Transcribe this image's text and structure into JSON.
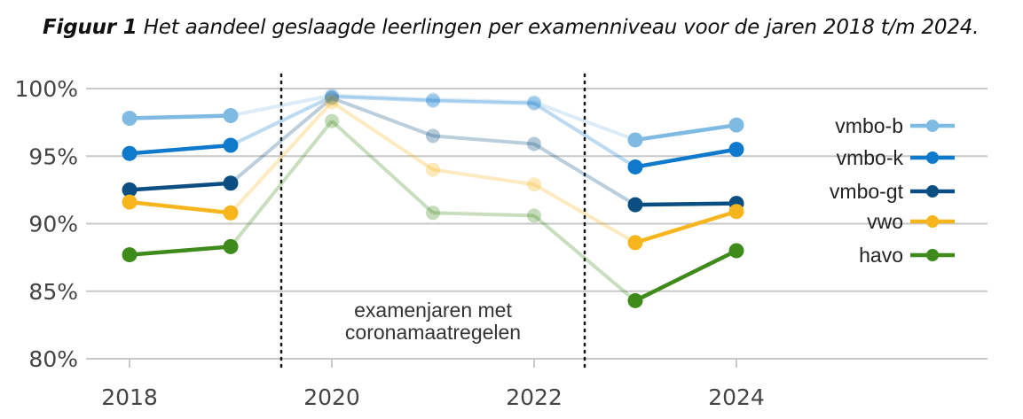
{
  "caption": {
    "label": "Figuur 1",
    "text": "Het aandeel geslaagde leerlingen per examenniveau voor de jaren 2018 t/m 2024."
  },
  "chart_data": {
    "type": "line",
    "x": [
      2018,
      2019,
      2020,
      2021,
      2022,
      2023,
      2024
    ],
    "xticks": [
      "2018",
      "2020",
      "2022",
      "2024"
    ],
    "yticks": [
      "80%",
      "85%",
      "90%",
      "95%",
      "100%"
    ],
    "ylim": [
      80,
      100
    ],
    "grid": "horizontal",
    "legend_position": "right",
    "highlighted_years": [
      2018,
      2019,
      2023,
      2024
    ],
    "faded_years": [
      2020,
      2021,
      2022
    ],
    "annotation": [
      "examenjaren met",
      "coronamaatregelen"
    ],
    "series": [
      {
        "name": "vmbo-b",
        "color": "#7fbae3",
        "values": [
          97.8,
          98.0,
          99.5,
          99.2,
          99.0,
          96.2,
          97.3
        ]
      },
      {
        "name": "vmbo-k",
        "color": "#0f7acb",
        "values": [
          95.2,
          95.8,
          99.4,
          99.1,
          98.9,
          94.2,
          95.5
        ]
      },
      {
        "name": "vmbo-gt",
        "color": "#0b4f82",
        "values": [
          92.5,
          93.0,
          99.3,
          96.5,
          95.9,
          91.4,
          91.5
        ]
      },
      {
        "name": "vwo",
        "color": "#f7b51d",
        "values": [
          91.6,
          90.8,
          99.0,
          94.0,
          92.9,
          88.6,
          90.9
        ]
      },
      {
        "name": "havo",
        "color": "#3e8a1a",
        "values": [
          87.7,
          88.3,
          97.6,
          90.8,
          90.6,
          84.3,
          88.0
        ]
      }
    ]
  }
}
